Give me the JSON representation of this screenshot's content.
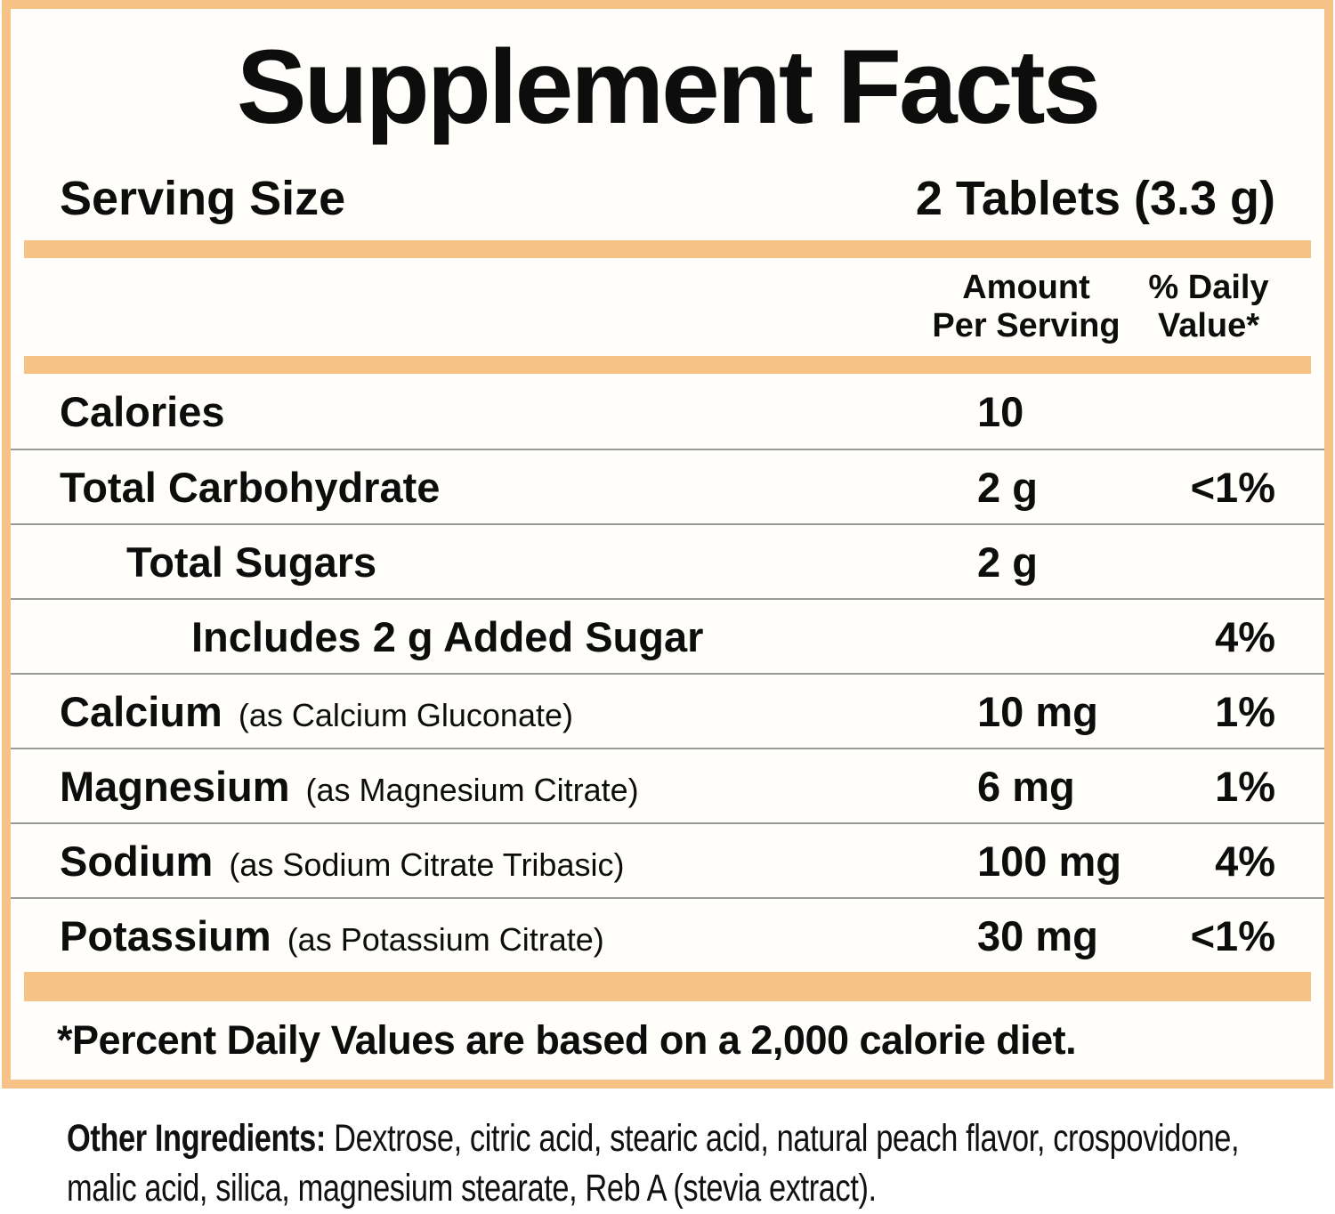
{
  "colors": {
    "accent": "#F7C286",
    "separator": "#9a9a9a"
  },
  "title": "Supplement Facts",
  "serving": {
    "label": "Serving Size",
    "value": "2 Tablets (3.3 g)"
  },
  "columns": {
    "amount_line1": "Amount",
    "amount_line2": "Per Serving",
    "dv_line1": "% Daily",
    "dv_line2": "Value*"
  },
  "table": {
    "rows": [
      {
        "name": "Calories",
        "detail": "",
        "amount": "10",
        "dv": "",
        "indent": 0
      },
      {
        "name": "Total Carbohydrate",
        "detail": "",
        "amount": "2 g",
        "dv": "<1%",
        "indent": 0
      },
      {
        "name": "Total Sugars",
        "detail": "",
        "amount": "2 g",
        "dv": "",
        "indent": 1
      },
      {
        "name": "Includes 2 g Added Sugar",
        "detail": "",
        "amount": "",
        "dv": "4%",
        "indent": 2
      },
      {
        "name": "Calcium",
        "detail": "(as Calcium Gluconate)",
        "amount": "10 mg",
        "dv": "1%",
        "indent": 0
      },
      {
        "name": "Magnesium",
        "detail": "(as Magnesium Citrate)",
        "amount": "6 mg",
        "dv": "1%",
        "indent": 0
      },
      {
        "name": "Sodium",
        "detail": "(as Sodium Citrate Tribasic)",
        "amount": "100 mg",
        "dv": "4%",
        "indent": 0
      },
      {
        "name": "Potassium",
        "detail": "(as Potassium Citrate)",
        "amount": "30 mg",
        "dv": "<1%",
        "indent": 0
      }
    ]
  },
  "footnote": "*Percent Daily Values are based on a 2,000 calorie diet.",
  "other_ingredients": {
    "label": "Other Ingredients:",
    "text": "Dextrose, citric acid, stearic acid, natural peach flavor, crospovidone, malic acid, silica, magnesium stearate, Reb A (stevia extract)."
  }
}
